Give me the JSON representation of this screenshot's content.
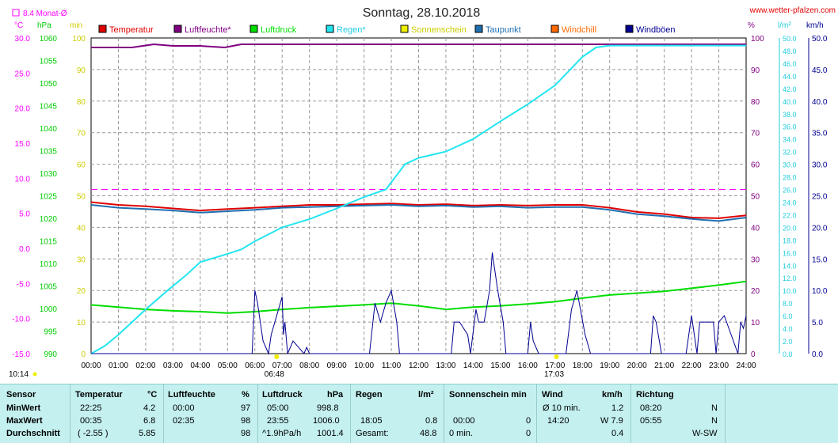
{
  "header": {
    "title": "Sonntag, 28.10.2018",
    "site": "www.wetter-pfalzen.com",
    "month_avg_label": "8.4 Monat-Ø"
  },
  "units": {
    "temp": "°C",
    "pressure": "hPa",
    "min": "min",
    "percent": "%",
    "rain": "l/m²",
    "wind": "km/h"
  },
  "legend": [
    {
      "label": "Temperatur",
      "color": "#e00000"
    },
    {
      "label": "Luftfeuchte*",
      "color": "#800080"
    },
    {
      "label": "Luftdruck",
      "color": "#00dd00"
    },
    {
      "label": "Regen*",
      "color": "#22e5f0"
    },
    {
      "label": "Sonnenschein",
      "color": "#eeee00"
    },
    {
      "label": "Taupunkt",
      "color": "#1f6fb0"
    },
    {
      "label": "Windchill",
      "color": "#ff6a00"
    },
    {
      "label": "Windböen",
      "color": "#000090"
    }
  ],
  "markers": {
    "sunrise": "06:48",
    "sunset": "17:03",
    "sun_left": "10:14"
  },
  "chart_data": {
    "type": "line",
    "x_ticks": [
      "00:00",
      "01:00",
      "02:00",
      "03:00",
      "04:00",
      "05:00",
      "06:00",
      "07:00",
      "08:00",
      "09:00",
      "10:00",
      "11:00",
      "12:00",
      "13:00",
      "14:00",
      "15:00",
      "16:00",
      "17:00",
      "18:00",
      "19:00",
      "20:00",
      "21:00",
      "22:00",
      "23:00",
      "24:00"
    ],
    "axes": {
      "temp": {
        "ticks": [
          "30.0",
          "25.0",
          "20.0",
          "15.0",
          "10.0",
          "5.0",
          "0.0",
          "-5.0",
          "-10.0",
          "-15.0"
        ],
        "range": [
          -15,
          30
        ]
      },
      "pressure": {
        "ticks": [
          "1060",
          "1055",
          "1050",
          "1045",
          "1040",
          "1035",
          "1030",
          "1025",
          "1020",
          "1015",
          "1010",
          "1005",
          "1000",
          "995",
          "990"
        ],
        "range": [
          990,
          1060
        ]
      },
      "minutes": {
        "ticks": [
          "100",
          "90",
          "80",
          "70",
          "60",
          "50",
          "40",
          "30",
          "20",
          "10",
          "0"
        ],
        "range": [
          0,
          100
        ]
      },
      "percent": {
        "ticks": [
          "100",
          "90",
          "80",
          "70",
          "60",
          "50",
          "40",
          "30",
          "20",
          "10",
          "0"
        ],
        "range": [
          0,
          100
        ]
      },
      "rain": {
        "ticks": [
          "50.0",
          "48.0",
          "46.0",
          "44.0",
          "42.0",
          "40.0",
          "38.0",
          "36.0",
          "34.0",
          "32.0",
          "30.0",
          "28.0",
          "26.0",
          "24.0",
          "22.0",
          "20.0",
          "18.0",
          "16.0",
          "14.0",
          "12.0",
          "10.0",
          "8.0",
          "6.0",
          "4.0",
          "2.0",
          "0.0"
        ],
        "range": [
          0,
          50
        ]
      },
      "wind": {
        "ticks": [
          "50.0",
          "45.0",
          "40.0",
          "35.0",
          "30.0",
          "25.0",
          "20.0",
          "15.0",
          "10.0",
          "5.0",
          "0.0"
        ],
        "range": [
          0,
          50
        ]
      }
    },
    "month_avg_temp": 8.4,
    "series": [
      {
        "name": "Temperatur",
        "axis": "temp",
        "color": "#e00000",
        "x": [
          0,
          1,
          2,
          3,
          4,
          5,
          6,
          7,
          8,
          9,
          10,
          11,
          12,
          13,
          14,
          15,
          16,
          17,
          18,
          19,
          20,
          21,
          22,
          23,
          24
        ],
        "y": [
          6.6,
          6.2,
          6.0,
          5.7,
          5.4,
          5.6,
          5.8,
          6.0,
          6.2,
          6.2,
          6.3,
          6.4,
          6.2,
          6.3,
          6.1,
          6.2,
          6.1,
          6.2,
          6.2,
          5.8,
          5.2,
          4.9,
          4.4,
          4.3,
          4.7
        ]
      },
      {
        "name": "Taupunkt",
        "axis": "temp",
        "color": "#1f6fb0",
        "x": [
          0,
          1,
          2,
          3,
          4,
          5,
          6,
          7,
          8,
          9,
          10,
          11,
          12,
          13,
          14,
          15,
          16,
          17,
          18,
          19,
          20,
          21,
          22,
          23,
          24
        ],
        "y": [
          6.2,
          5.8,
          5.6,
          5.4,
          5.1,
          5.3,
          5.5,
          5.8,
          5.9,
          6.0,
          6.1,
          6.2,
          6.0,
          6.1,
          5.9,
          6.0,
          5.8,
          5.9,
          5.9,
          5.5,
          4.9,
          4.6,
          4.2,
          3.9,
          4.4
        ]
      },
      {
        "name": "Luftfeuchte*",
        "axis": "percent",
        "color": "#800080",
        "x": [
          0,
          1.5,
          2.3,
          3,
          4,
          4.9,
          5.5,
          6.5,
          24
        ],
        "y": [
          97,
          97,
          98,
          97.5,
          97.5,
          97,
          98,
          98,
          98
        ]
      },
      {
        "name": "Luftdruck",
        "axis": "pressure",
        "color": "#00dd00",
        "x": [
          0,
          1,
          2,
          3,
          4,
          5,
          6,
          7,
          8,
          9,
          10,
          11,
          12,
          13,
          14,
          15,
          16,
          17,
          18,
          19,
          20,
          21,
          22,
          23,
          24
        ],
        "y": [
          1000.8,
          1000.3,
          999.8,
          999.5,
          999.3,
          999.0,
          999.3,
          999.8,
          1000.2,
          1000.5,
          1000.8,
          1001.2,
          1000.6,
          999.8,
          1000.3,
          1000.6,
          1001.0,
          1001.5,
          1002.3,
          1003.0,
          1003.4,
          1003.8,
          1004.5,
          1005.2,
          1006.0
        ]
      },
      {
        "name": "Regen*",
        "axis": "rain",
        "color": "#22e5f0",
        "x": [
          0,
          0.5,
          1,
          1.5,
          2,
          2.8,
          3.5,
          4,
          5,
          5.5,
          6,
          7,
          8,
          9,
          10,
          10.8,
          11.5,
          12,
          13,
          14,
          15,
          16,
          17,
          18,
          18.5,
          19,
          19.5,
          24
        ],
        "y": [
          0.0,
          1.2,
          3.0,
          5.0,
          7.0,
          10.0,
          12.5,
          14.5,
          15.8,
          16.5,
          17.8,
          20.0,
          21.3,
          23.0,
          24.8,
          26.0,
          30.0,
          31.0,
          32.0,
          34.0,
          36.8,
          39.5,
          42.5,
          47.0,
          48.5,
          48.8,
          48.8,
          48.8
        ]
      },
      {
        "name": "Windböen",
        "axis": "wind",
        "color": "#000090",
        "x": [
          0,
          5.9,
          6,
          6.1,
          6.2,
          6.3,
          6.5,
          6.6,
          7,
          7.05,
          7.1,
          7.2,
          7.4,
          7.8,
          7.9,
          8,
          10.2,
          10.4,
          10.6,
          10.8,
          11,
          11.2,
          11.3,
          11.4,
          12.5,
          13.2,
          13.3,
          13.5,
          13.8,
          13.9,
          14.1,
          14.2,
          14.3,
          14.4,
          14.6,
          14.7,
          14.9,
          15.1,
          15.2,
          15.4,
          15.5,
          16,
          16.1,
          16.2,
          16.4,
          17.2,
          17.4,
          17.6,
          17.8,
          18.1,
          18.3,
          19.3,
          19.5,
          20,
          20.5,
          20.6,
          20.7,
          20.9,
          21.8,
          22,
          22.2,
          22.3,
          22.5,
          22.8,
          22.9,
          23,
          23.2,
          23.7,
          23.8,
          23.9,
          24
        ],
        "y": [
          0,
          0,
          10,
          8,
          5,
          2,
          0,
          3,
          9,
          3,
          5,
          0,
          2,
          0,
          1,
          0,
          0,
          8,
          5,
          8,
          10,
          5,
          0,
          0,
          0,
          0,
          5,
          5,
          3,
          0,
          7,
          5,
          5,
          5,
          10,
          16,
          10,
          5,
          0,
          0,
          0,
          0,
          5,
          2,
          0,
          0,
          0,
          7,
          10,
          3,
          0,
          0,
          0,
          0,
          0,
          6,
          5,
          0,
          0,
          6,
          0,
          5,
          5,
          5,
          0,
          5,
          6,
          0,
          5,
          4,
          6
        ]
      }
    ]
  },
  "stats": {
    "headers": {
      "sensor": "Sensor",
      "temp": "Temperatur",
      "temp_unit": "°C",
      "hum": "Luftfeuchte",
      "hum_unit": "%",
      "press": "Luftdruck",
      "press_unit": "hPa",
      "rain": "Regen",
      "rain_unit": "l/m²",
      "sun": "Sonnenschein min",
      "wind": "Wind",
      "wind_unit": "km/h",
      "dir": "Richtung"
    },
    "rows": [
      {
        "label": "MinWert",
        "temp_t": "22:25",
        "temp_v": "4.2",
        "hum_t": "00:00",
        "hum_v": "97",
        "press_t": "05:00",
        "press_v": "998.8",
        "rain_t": "",
        "rain_v": "",
        "sun_t": "",
        "sun_v": "",
        "wind_t": "Ø 10 min.",
        "wind_v": "1.2",
        "dir_t": "08:20",
        "dir_v": "N"
      },
      {
        "label": "MaxWert",
        "temp_t": "00:35",
        "temp_v": "6.8",
        "hum_t": "02:35",
        "hum_v": "98",
        "press_t": "23:55",
        "press_v": "1006.0",
        "rain_t": "18:05",
        "rain_v": "0.8",
        "sun_t": "00:00",
        "sun_v": "0",
        "wind_t": "14:20",
        "wind_v": "W 7.9",
        "dir_t": "05:55",
        "dir_v": "N"
      },
      {
        "label": "Durchschnitt",
        "temp_t": "( -2.55 )",
        "temp_v": "5.85",
        "hum_t": "",
        "hum_v": "98",
        "press_t": "^1.9hPa/h",
        "press_v": "1001.4",
        "rain_t": "Gesamt:",
        "rain_v": "48.8",
        "sun_t": "0 min.",
        "sun_v": "0",
        "wind_t": "",
        "wind_v": "0.4",
        "dir_t": "",
        "dir_v": "W-SW"
      }
    ]
  }
}
